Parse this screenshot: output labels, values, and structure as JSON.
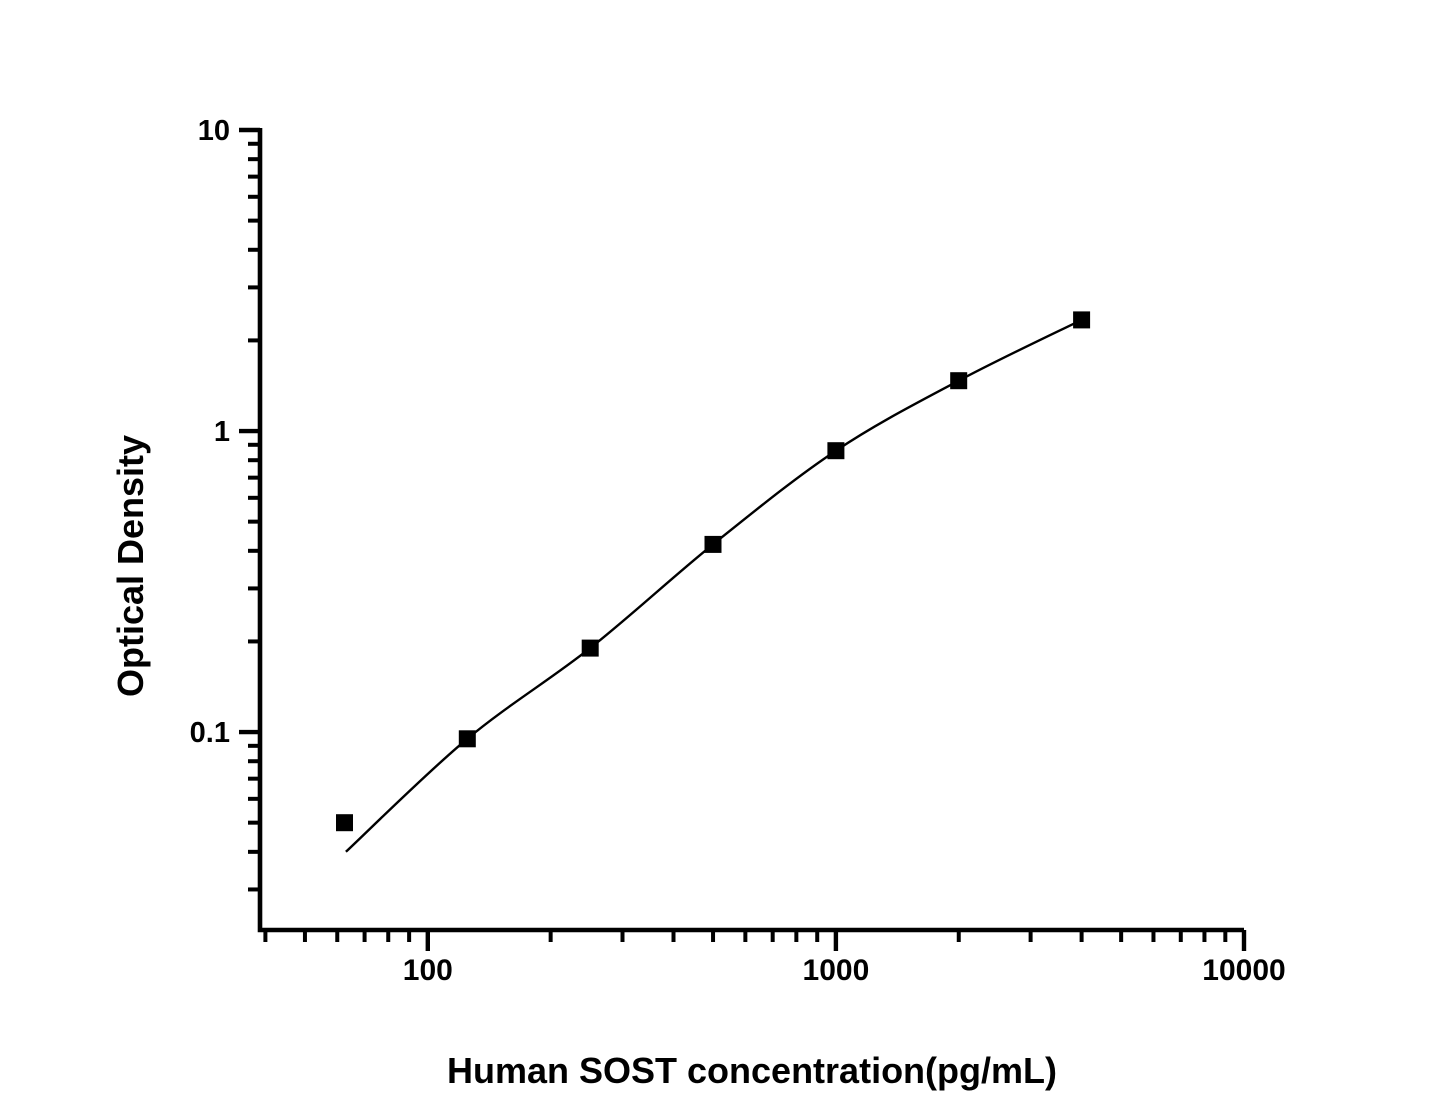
{
  "figure": {
    "background_color": "#ffffff",
    "ink_color": "#000000"
  },
  "chart_data": {
    "type": "scatter",
    "title": "",
    "xlabel": "Human SOST concentration(pg/mL)",
    "ylabel": "Optical Density",
    "x_scale": "log",
    "y_scale": "log",
    "x_range": [
      38.8,
      10000
    ],
    "y_range": [
      0.022,
      10
    ],
    "x_major_ticks": [
      {
        "value": 100,
        "label": "100"
      },
      {
        "value": 1000,
        "label": "1000"
      },
      {
        "value": 10000,
        "label": "10000"
      }
    ],
    "y_major_ticks": [
      {
        "value": 10,
        "label": "10"
      },
      {
        "value": 1,
        "label": "1"
      },
      {
        "value": 0.1,
        "label": "0.1"
      }
    ],
    "grid": false,
    "legend": "none",
    "series": [
      {
        "name": "standards",
        "marker": "filled-square",
        "marker_size": 17,
        "color": "#000000",
        "points": [
          [
            62.5,
            0.05
          ],
          [
            125,
            0.095
          ],
          [
            250,
            0.19
          ],
          [
            500,
            0.42
          ],
          [
            1000,
            0.86
          ],
          [
            2000,
            1.47
          ],
          [
            4000,
            2.34
          ]
        ]
      }
    ],
    "fit_curve": {
      "name": "standard-curve-fit",
      "color": "#000000",
      "width": 2.4,
      "points": [
        [
          63,
          0.04
        ],
        [
          125,
          0.095
        ],
        [
          250,
          0.19
        ],
        [
          500,
          0.42
        ],
        [
          1000,
          0.86
        ],
        [
          2000,
          1.47
        ],
        [
          4000,
          2.34
        ]
      ]
    }
  }
}
